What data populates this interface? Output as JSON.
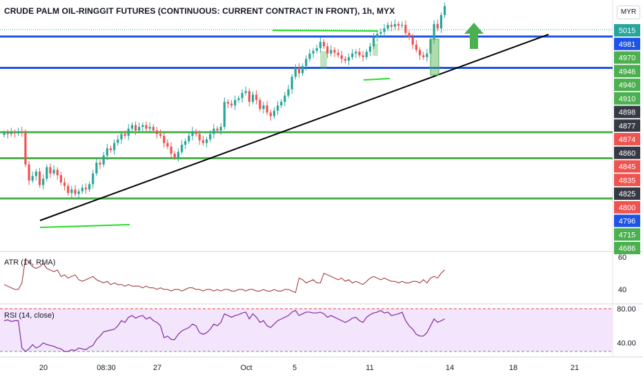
{
  "header": {
    "title": "CRUDE PALM OIL-RINGGIT FUTURES (CONTINUOUS: CURRENT CONTRACT IN FRONT), 1h, MYX",
    "currency": "MYR"
  },
  "colors": {
    "up": "#26a69a",
    "down": "#ef5350",
    "hline_blue": "#1e53e5",
    "hline_green": "#4caf50",
    "trendline": "#000000",
    "marker_green": "#22dd22",
    "arrow": "#4caf50",
    "atr_line": "#9c2a2a",
    "rsi_line": "#7e2ba0",
    "rsi_band": "#f3e5fb",
    "rsi_upper_dash": "#e53935",
    "rsi_lower_dash": "#4caf50"
  },
  "chart_data": [
    {
      "type": "candlestick",
      "title": "CRUDE PALM OIL-RINGGIT FUTURES (CONTINUOUS: CURRENT CONTRACT IN FRONT), 1h, MYX",
      "x_ticks": [
        "20",
        "08:30",
        "27",
        "Oct",
        "5",
        "11",
        "14",
        "18",
        "21"
      ],
      "price_labels": [
        {
          "value": "5015",
          "bg": "#26a69a"
        },
        {
          "value": "4981",
          "bg": "#1e53e5"
        },
        {
          "value": "4970",
          "bg": "#4caf50"
        },
        {
          "value": "4946",
          "bg": "#4caf50"
        },
        {
          "value": "4940",
          "bg": "#4caf50"
        },
        {
          "value": "4910",
          "bg": "#4caf50"
        },
        {
          "value": "4898",
          "bg": "#363a45"
        },
        {
          "value": "4877",
          "bg": "#363a45"
        },
        {
          "value": "4874",
          "bg": "#ef5350"
        },
        {
          "value": "4860",
          "bg": "#363a45"
        },
        {
          "value": "4845",
          "bg": "#ef5350"
        },
        {
          "value": "4835",
          "bg": "#ef5350"
        },
        {
          "value": "4825",
          "bg": "#363a45"
        },
        {
          "value": "4800",
          "bg": "#ef5350"
        },
        {
          "value": "4796",
          "bg": "#1e53e5"
        },
        {
          "value": "4715",
          "bg": "#4caf50"
        },
        {
          "value": "4686",
          "bg": "#4caf50"
        }
      ],
      "horizontal_levels": [
        {
          "value": 4981,
          "color": "blue"
        },
        {
          "value": 4946,
          "color": "blue"
        },
        {
          "value": 4874,
          "color": "green"
        },
        {
          "value": 4845,
          "color": "green"
        },
        {
          "value": 4800,
          "color": "green"
        }
      ],
      "closes": [
        4873,
        4872,
        4874,
        4873,
        4875,
        4874,
        4838,
        4820,
        4825,
        4830,
        4815,
        4822,
        4835,
        4828,
        4832,
        4826,
        4818,
        4814,
        4806,
        4810,
        4805,
        4808,
        4812,
        4810,
        4816,
        4828,
        4840,
        4838,
        4848,
        4856,
        4854,
        4862,
        4866,
        4872,
        4870,
        4878,
        4882,
        4876,
        4880,
        4882,
        4878,
        4880,
        4876,
        4872,
        4870,
        4862,
        4858,
        4850,
        4846,
        4852,
        4860,
        4864,
        4870,
        4875,
        4872,
        4865,
        4862,
        4866,
        4872,
        4878,
        4876,
        4880,
        4908,
        4906,
        4904,
        4910,
        4912,
        4918,
        4920,
        4908,
        4916,
        4910,
        4900,
        4904,
        4896,
        4892,
        4898,
        4904,
        4908,
        4915,
        4922,
        4936,
        4946,
        4940,
        4948,
        4956,
        4962,
        4965,
        4968,
        4975,
        4970,
        4962,
        4966,
        4963,
        4960,
        4956,
        4954,
        4958,
        4962,
        4964,
        4960,
        4958,
        4964,
        4970,
        4980,
        4984,
        4986,
        4990,
        4994,
        4992,
        4995,
        4993,
        4994,
        4985,
        4980,
        4972,
        4966,
        4960,
        4958,
        4962,
        4978,
        4995,
        4990,
        5005,
        5015
      ],
      "atr": {
        "name": "ATR (14, RMA)",
        "ticks": [
          "60",
          "40"
        ],
        "values": [
          43,
          42,
          41,
          40,
          40,
          44,
          59,
          57,
          54,
          53,
          54,
          56,
          53,
          52,
          51,
          52,
          48,
          49,
          47,
          48,
          49,
          46,
          45,
          46,
          47,
          48,
          46,
          45,
          44,
          45,
          43,
          44,
          43,
          43,
          42,
          43,
          42,
          42,
          42,
          41,
          42,
          41,
          41,
          40,
          41,
          40,
          40,
          39,
          40,
          40,
          39,
          40,
          41,
          41,
          40,
          40,
          39,
          40,
          40,
          39,
          40,
          39,
          40,
          40,
          39,
          39,
          40,
          40,
          39,
          40,
          40,
          39,
          39,
          40,
          39,
          39,
          40,
          39,
          39,
          40,
          40,
          39,
          38,
          47,
          46,
          44,
          45,
          46,
          44,
          44,
          50,
          49,
          48,
          47,
          46,
          47,
          45,
          46,
          44,
          45,
          44,
          43,
          45,
          47,
          48,
          47,
          46,
          47,
          46,
          45,
          45,
          44,
          45,
          44,
          44,
          45,
          45,
          44,
          46,
          44,
          47,
          48,
          47,
          50,
          52
        ]
      },
      "rsi": {
        "name": "RSI (14, close)",
        "ticks": [
          "80.00",
          "40.00"
        ],
        "values": [
          66,
          67,
          65,
          66,
          66,
          34,
          30,
          33,
          38,
          34,
          36,
          40,
          38,
          37,
          36,
          34,
          33,
          30,
          30,
          32,
          31,
          34,
          33,
          32,
          35,
          37,
          44,
          48,
          53,
          54,
          55,
          56,
          60,
          66,
          64,
          70,
          72,
          69,
          71,
          72,
          68,
          70,
          66,
          64,
          60,
          46,
          48,
          44,
          44,
          50,
          54,
          56,
          58,
          62,
          60,
          52,
          50,
          52,
          56,
          62,
          60,
          64,
          74,
          72,
          70,
          72,
          73,
          75,
          76,
          68,
          74,
          70,
          64,
          66,
          60,
          58,
          62,
          66,
          68,
          70,
          72,
          76,
          78,
          72,
          74,
          76,
          76,
          75,
          75,
          76,
          74,
          70,
          72,
          70,
          68,
          66,
          64,
          66,
          69,
          70,
          66,
          64,
          70,
          73,
          75,
          76,
          78,
          75,
          76,
          72,
          73,
          74,
          76,
          66,
          60,
          56,
          50,
          48,
          48,
          52,
          60,
          68,
          64,
          66,
          68
        ]
      }
    }
  ]
}
